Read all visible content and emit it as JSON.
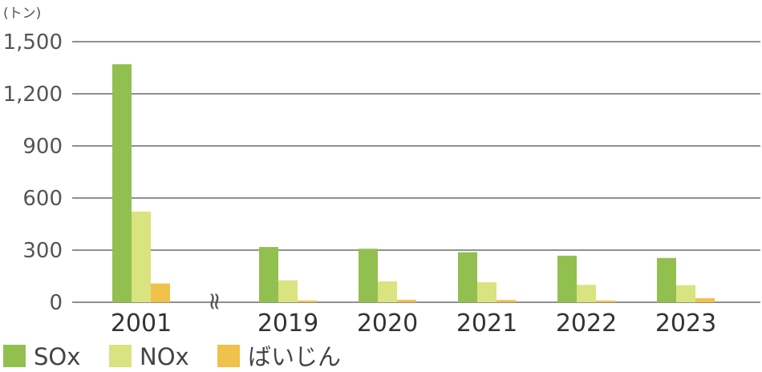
{
  "chart_data": {
    "type": "bar",
    "unit_label": "(トン)",
    "categories": [
      "2001",
      "2019",
      "2020",
      "2021",
      "2022",
      "2023"
    ],
    "axis_break_symbol": "≈",
    "series": [
      {
        "name": "SOx",
        "color": "#92c050",
        "values": [
          1370,
          318,
          308,
          288,
          268,
          255
        ]
      },
      {
        "name": "NOx",
        "color": "#d9e37f",
        "values": [
          522,
          126,
          120,
          115,
          100,
          98
        ]
      },
      {
        "name": "ばいじん",
        "color": "#f0c14b",
        "values": [
          108,
          10,
          14,
          13,
          10,
          23
        ]
      }
    ],
    "yticks": [
      "0",
      "300",
      "600",
      "900",
      "1,200",
      "1,500"
    ],
    "ytick_values": [
      0,
      300,
      600,
      900,
      1200,
      1500
    ],
    "ylim": [
      0,
      1500
    ],
    "grid": true,
    "legend_position": "bottom-left"
  }
}
